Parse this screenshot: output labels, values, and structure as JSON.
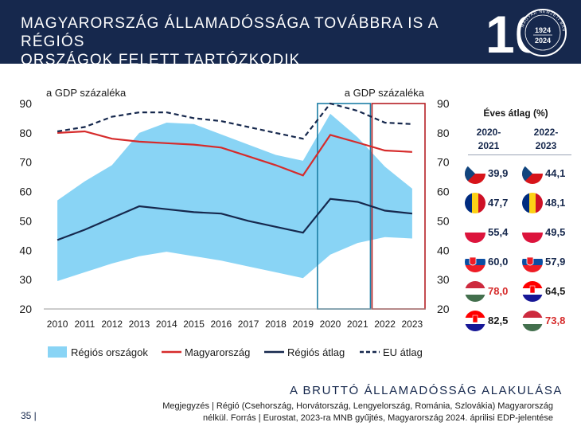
{
  "header": {
    "title_line1": "MAGYARORSZÁG ÁLLAMADÓSSÁGA TOVÁBBRA IS A RÉGIÓS",
    "title_line2": "ORSZÁGOK FELETT TARTÓZKODIK",
    "logo": {
      "number": "10",
      "years_top": "1924",
      "years_bottom": "2024",
      "seal_text": "MAGYAR NEMZETI BANK"
    }
  },
  "chart_data": {
    "type": "line",
    "x": [
      "2010",
      "2011",
      "2012",
      "2013",
      "2014",
      "2015",
      "2016",
      "2017",
      "2018",
      "2019",
      "2020",
      "2021",
      "2022",
      "2023"
    ],
    "ylim": [
      20,
      90
    ],
    "yticks": [
      20,
      30,
      40,
      50,
      60,
      70,
      80,
      90
    ],
    "ylabel_left": "a GDP százaléka",
    "ylabel_right": "a GDP százaléka",
    "band": {
      "name": "Régiós országok",
      "lower": [
        29.5,
        32.5,
        35.5,
        38,
        39.5,
        38,
        36.5,
        34.5,
        32.5,
        30.5,
        38.5,
        42.5,
        44.5,
        44
      ],
      "upper": [
        57,
        63.5,
        69,
        80,
        83.5,
        83,
        79.5,
        76,
        72.5,
        70.5,
        86.5,
        78.5,
        68.5,
        61
      ]
    },
    "series": [
      {
        "name": "Magyarország",
        "values": [
          80,
          80.5,
          78,
          77,
          76.5,
          76,
          75,
          72,
          69,
          65.5,
          79.3,
          76.7,
          74,
          73.5
        ]
      },
      {
        "name": "Régiós átlag",
        "values": [
          43.5,
          47,
          51,
          55,
          54,
          53,
          52.5,
          50,
          48,
          46,
          57.5,
          56.5,
          53.5,
          52.5
        ]
      },
      {
        "name": "EU átlag",
        "values": [
          80.5,
          82,
          85.5,
          87,
          87,
          85,
          84,
          82,
          80,
          78,
          90,
          87.5,
          83.5,
          83
        ]
      }
    ],
    "highlight_boxes": [
      {
        "from": "2020",
        "to": "2021",
        "color": "#1e7fa6"
      },
      {
        "from": "2022",
        "to": "2023",
        "color": "#b51f24"
      }
    ],
    "colors": {
      "band": "#89d4f5",
      "hungary": "#d62b2b",
      "regional_avg": "#16284d",
      "eu_avg": "#16284d"
    },
    "legend": [
      "Régiós országok",
      "Magyarország",
      "Régiós átlag",
      "EU átlag"
    ],
    "legend_placement": "bottom"
  },
  "averages": {
    "title": "Éves átlag (%)",
    "col1_line1": "2020-",
    "col1_line2": "2021",
    "col2_line1": "2022-",
    "col2_line2": "2023",
    "col1": [
      {
        "flag": "czech-flag",
        "value": "39,9",
        "color": "#16284d"
      },
      {
        "flag": "romania-flag",
        "value": "47,7",
        "color": "#16284d"
      },
      {
        "flag": "poland-flag",
        "value": "55,4",
        "color": "#16284d"
      },
      {
        "flag": "slovakia-flag",
        "value": "60,0",
        "color": "#16284d"
      },
      {
        "flag": "hungary-flag",
        "value": "78,0",
        "color": "#d62b2b"
      },
      {
        "flag": "croatia-flag",
        "value": "82,5",
        "color": "#1a1a1a"
      }
    ],
    "col2": [
      {
        "flag": "czech-flag",
        "value": "44,1",
        "color": "#16284d"
      },
      {
        "flag": "romania-flag",
        "value": "48,1",
        "color": "#16284d"
      },
      {
        "flag": "poland-flag",
        "value": "49,5",
        "color": "#16284d"
      },
      {
        "flag": "slovakia-flag",
        "value": "57,9",
        "color": "#16284d"
      },
      {
        "flag": "croatia-flag",
        "value": "64,5",
        "color": "#1a1a1a"
      },
      {
        "flag": "hungary-flag",
        "value": "73,8",
        "color": "#d62b2b"
      }
    ]
  },
  "footer": {
    "section_title": "A BRUTTÓ ÁLLAMADÓSSÁG ALAKULÁSA",
    "note_line1": "Megjegyzés | Régió (Csehország, Horvátország, Lengyelország, Románia, Szlovákia) Magyarország",
    "note_line2": "nélkül. Forrás | Eurostat, 2023-ra MNB gyűjtés, Magyarország 2024. áprilisi EDP-jelentése",
    "page_number": "35 |"
  }
}
